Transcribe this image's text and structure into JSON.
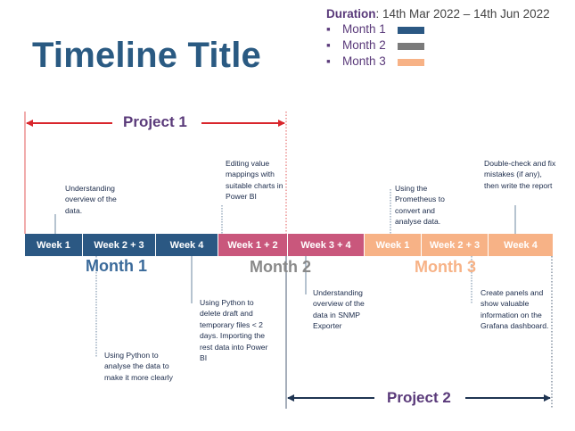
{
  "title": "Timeline Title",
  "duration": {
    "label": "Duration",
    "value": ": 14th Mar 2022 – 14th Jun 2022"
  },
  "legend": [
    {
      "label": "Month 1",
      "color": "#2b5883"
    },
    {
      "label": "Month 2",
      "color": "#7a7a7a"
    },
    {
      "label": "Month 3",
      "color": "#f7b286"
    }
  ],
  "projects": [
    {
      "label": "Project 1",
      "color": "#d9262c"
    },
    {
      "label": "Project 2",
      "color": "#1f3552"
    }
  ],
  "months": [
    {
      "label": "Month 1",
      "color": "#3a6a9a"
    },
    {
      "label": "Month 2",
      "color": "#8a8a8a"
    },
    {
      "label": "Month 3",
      "color": "#f7b286"
    }
  ],
  "weeks": [
    {
      "label": "Week 1",
      "color": "#2b5883"
    },
    {
      "label": "Week 2 + 3",
      "color": "#2b5883"
    },
    {
      "label": "Week 4",
      "color": "#2b5883"
    },
    {
      "label": "Week 1 + 2",
      "color": "#c9577c"
    },
    {
      "label": "Week 3 + 4",
      "color": "#c9577c"
    },
    {
      "label": "Week 1",
      "color": "#f7b286"
    },
    {
      "label": "Week 2 + 3",
      "color": "#f7b286"
    },
    {
      "label": "Week 4",
      "color": "#f7b286"
    }
  ],
  "notes": [
    {
      "text": "Understanding overview of the data."
    },
    {
      "text": "Editing value mappings with suitable charts in Power BI"
    },
    {
      "text": "Using the Prometheus to convert and analyse data."
    },
    {
      "text": "Double-check and fix mistakes (if any), then write the report"
    },
    {
      "text": "Using Python to delete draft and temporary files < 2 days. Importing the rest data into Power BI"
    },
    {
      "text": "Understanding overview of the data in SNMP Exporter"
    },
    {
      "text": "Create panels and show valuable information on the Grafana dashboard."
    },
    {
      "text": "Using Python to analyse the data to make it more clearly"
    }
  ]
}
